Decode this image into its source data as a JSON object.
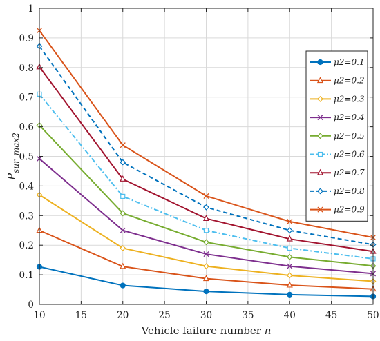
{
  "chart_data": {
    "type": "line",
    "x": [
      10,
      20,
      30,
      40,
      50
    ],
    "xlim": [
      10,
      50
    ],
    "ylim": [
      0,
      1
    ],
    "xticks": [
      10,
      15,
      20,
      25,
      30,
      35,
      40,
      45,
      50
    ],
    "yticks": [
      0,
      0.1,
      0.2,
      0.3,
      0.4,
      0.5,
      0.6,
      0.7,
      0.8,
      0.9,
      1
    ],
    "xlabel": "Vehicle failure number n",
    "ylabel": "P sur_max2",
    "grid": true,
    "legend_position": "top-right",
    "series": [
      {
        "name": "μ2=0.1",
        "values": [
          0.127,
          0.064,
          0.044,
          0.033,
          0.027
        ],
        "color": "#0072BD",
        "marker": "circle",
        "dash": "solid"
      },
      {
        "name": "μ2=0.2",
        "values": [
          0.25,
          0.128,
          0.087,
          0.065,
          0.052
        ],
        "color": "#D95319",
        "marker": "triangle",
        "dash": "solid"
      },
      {
        "name": "μ2=0.3",
        "values": [
          0.37,
          0.19,
          0.129,
          0.098,
          0.078
        ],
        "color": "#EDB120",
        "marker": "diamond",
        "dash": "solid"
      },
      {
        "name": "μ2=0.4",
        "values": [
          0.492,
          0.25,
          0.17,
          0.129,
          0.104
        ],
        "color": "#7E2F8E",
        "marker": "x",
        "dash": "solid"
      },
      {
        "name": "μ2=0.5",
        "values": [
          0.605,
          0.308,
          0.21,
          0.16,
          0.13
        ],
        "color": "#77AC30",
        "marker": "diamond",
        "dash": "solid"
      },
      {
        "name": "μ2=0.6",
        "values": [
          0.71,
          0.365,
          0.25,
          0.19,
          0.154
        ],
        "color": "#4DBEEE",
        "marker": "square",
        "dash": "dashdot"
      },
      {
        "name": "μ2=0.7",
        "values": [
          0.802,
          0.423,
          0.29,
          0.221,
          0.179
        ],
        "color": "#A2142F",
        "marker": "triangle",
        "dash": "solid"
      },
      {
        "name": "μ2=0.8",
        "values": [
          0.872,
          0.48,
          0.328,
          0.25,
          0.202
        ],
        "color": "#0072BD",
        "marker": "diamond",
        "dash": "dashed"
      },
      {
        "name": "μ2=0.9",
        "values": [
          0.925,
          0.538,
          0.366,
          0.28,
          0.226
        ],
        "color": "#D95319",
        "marker": "x",
        "dash": "solid"
      }
    ]
  }
}
